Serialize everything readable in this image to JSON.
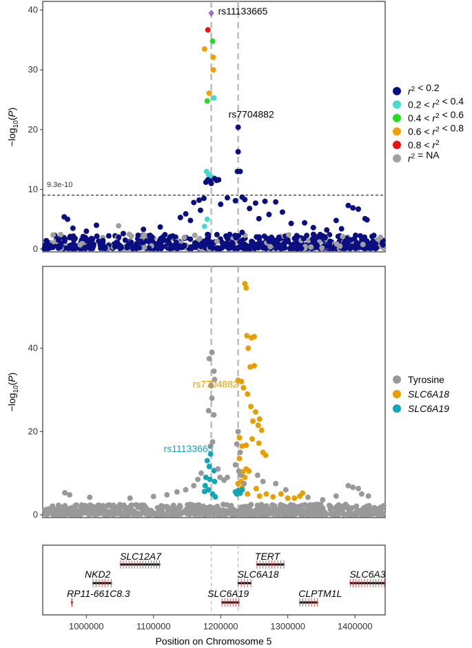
{
  "chart_data": [
    {
      "type": "scatter",
      "panel": "locuszoom",
      "ylabel": "-log10(P)",
      "ylim": [
        0,
        41
      ],
      "yticks": [
        0,
        10,
        20,
        30,
        40
      ],
      "xlim": [
        935000,
        1445000
      ],
      "threshold": {
        "value": 9.03,
        "label": "9.3e-10"
      },
      "vlines": [
        1186000,
        1226000
      ],
      "legend": [
        {
          "label": "r² < 0.2",
          "color": "#0a0f80"
        },
        {
          "label": "0.2 < r² < 0.4",
          "color": "#46d9d0"
        },
        {
          "label": "0.4 < r² < 0.6",
          "color": "#22dd22"
        },
        {
          "label": "0.6 < r² < 0.8",
          "color": "#f0a000"
        },
        {
          "label": "0.8 < r²",
          "color": "#ee1111"
        },
        {
          "label": "r² = NA",
          "color": "#a0a0a0"
        }
      ],
      "annotations": [
        {
          "text": "rs11133665",
          "x": 1186000,
          "y": 39.5
        },
        {
          "text": "rs7704882",
          "x": 1226000,
          "y": 20.4
        }
      ],
      "points": [
        {
          "x": 1186000,
          "y": 39.5,
          "c": "lead"
        },
        {
          "x": 1181000,
          "y": 36.7,
          "c": "r5"
        },
        {
          "x": 1188000,
          "y": 34.8,
          "c": "r3"
        },
        {
          "x": 1176000,
          "y": 33.5,
          "c": "r4"
        },
        {
          "x": 1189000,
          "y": 32.1,
          "c": "r4"
        },
        {
          "x": 1189000,
          "y": 30.0,
          "c": "r4"
        },
        {
          "x": 1183000,
          "y": 26.1,
          "c": "r4"
        },
        {
          "x": 1190000,
          "y": 25.3,
          "c": "r2"
        },
        {
          "x": 1180000,
          "y": 24.8,
          "c": "r3"
        },
        {
          "x": 1226000,
          "y": 20.4,
          "c": "r1"
        },
        {
          "x": 1226000,
          "y": 16.3,
          "c": "r1"
        },
        {
          "x": 1225000,
          "y": 13.0,
          "c": "r1"
        },
        {
          "x": 1229000,
          "y": 13.0,
          "c": "r1"
        },
        {
          "x": 1179000,
          "y": 13.0,
          "c": "r2"
        },
        {
          "x": 1182000,
          "y": 12.5,
          "c": "r2"
        },
        {
          "x": 1185000,
          "y": 12.2,
          "c": "r2"
        },
        {
          "x": 1188000,
          "y": 12.0,
          "c": "r2"
        },
        {
          "x": 1181000,
          "y": 11.6,
          "c": "r1"
        },
        {
          "x": 1184000,
          "y": 11.4,
          "c": "r1"
        },
        {
          "x": 1191000,
          "y": 11.8,
          "c": "r1"
        },
        {
          "x": 1194000,
          "y": 11.5,
          "c": "r1"
        },
        {
          "x": 1197000,
          "y": 11.6,
          "c": "r1"
        },
        {
          "x": 1178000,
          "y": 11.2,
          "c": "r1"
        },
        {
          "x": 1186000,
          "y": 11.0,
          "c": "r1"
        },
        {
          "x": 1176000,
          "y": 3.8,
          "c": "r2"
        },
        {
          "x": 1180000,
          "y": 5.0,
          "c": "r2"
        },
        {
          "x": 1175000,
          "y": 8.5,
          "c": "r1"
        },
        {
          "x": 1210000,
          "y": 8.6,
          "c": "r1"
        },
        {
          "x": 1232000,
          "y": 8.7,
          "c": "r1"
        },
        {
          "x": 1236000,
          "y": 8.3,
          "c": "r1"
        },
        {
          "x": 1222000,
          "y": 8.1,
          "c": "r1"
        },
        {
          "x": 1168000,
          "y": 8.2,
          "c": "r1"
        },
        {
          "x": 1160000,
          "y": 7.8,
          "c": "r1"
        },
        {
          "x": 1200000,
          "y": 7.5,
          "c": "r1"
        },
        {
          "x": 1170000,
          "y": 6.5,
          "c": "r1"
        },
        {
          "x": 1243000,
          "y": 6.8,
          "c": "r1"
        },
        {
          "x": 1252000,
          "y": 7.7,
          "c": "r1"
        },
        {
          "x": 1266000,
          "y": 8.0,
          "c": "r1"
        },
        {
          "x": 1282000,
          "y": 7.9,
          "c": "r1"
        },
        {
          "x": 1148000,
          "y": 5.9,
          "c": "r1"
        },
        {
          "x": 1140000,
          "y": 5.3,
          "c": "r1"
        },
        {
          "x": 1155000,
          "y": 4.8,
          "c": "r1"
        },
        {
          "x": 1257000,
          "y": 5.1,
          "c": "r1"
        },
        {
          "x": 1272000,
          "y": 5.8,
          "c": "r1"
        },
        {
          "x": 1292000,
          "y": 6.2,
          "c": "r1"
        },
        {
          "x": 1305000,
          "y": 4.3,
          "c": "r1"
        },
        {
          "x": 1325000,
          "y": 4.4,
          "c": "r1"
        },
        {
          "x": 1338000,
          "y": 3.6,
          "c": "r1"
        },
        {
          "x": 1358000,
          "y": 3.2,
          "c": "r1"
        },
        {
          "x": 1372000,
          "y": 4.8,
          "c": "r1"
        },
        {
          "x": 1380000,
          "y": 3.4,
          "c": "r1"
        },
        {
          "x": 1390000,
          "y": 7.3,
          "c": "r1"
        },
        {
          "x": 1397000,
          "y": 6.9,
          "c": "r1"
        },
        {
          "x": 1405000,
          "y": 6.7,
          "c": "r1"
        },
        {
          "x": 1415000,
          "y": 5.1,
          "c": "r1"
        },
        {
          "x": 1418000,
          "y": 4.9,
          "c": "r1"
        },
        {
          "x": 967000,
          "y": 5.4,
          "c": "r1"
        },
        {
          "x": 972000,
          "y": 5.0,
          "c": "r1"
        },
        {
          "x": 980000,
          "y": 3.5,
          "c": "r1"
        },
        {
          "x": 1000000,
          "y": 3.0,
          "c": "r1"
        },
        {
          "x": 1015000,
          "y": 4.0,
          "c": "r1"
        },
        {
          "x": 1055000,
          "y": 2.6,
          "c": "r1"
        },
        {
          "x": 1085000,
          "y": 3.3,
          "c": "r1"
        },
        {
          "x": 1110000,
          "y": 3.7,
          "c": "r1"
        },
        {
          "x": 1048000,
          "y": 3.9,
          "c": "rna"
        },
        {
          "x": 1208000,
          "y": 2.2,
          "c": "r1"
        },
        {
          "x": 1232000,
          "y": 2.8,
          "c": "r1"
        }
      ]
    },
    {
      "type": "scatter",
      "panel": "trait-association",
      "ylabel": "-log10(P)",
      "ylim": [
        0,
        59
      ],
      "yticks": [
        0,
        20,
        40
      ],
      "xlim": [
        935000,
        1445000
      ],
      "vlines": [
        1186000,
        1226000
      ],
      "legend": [
        {
          "label": "Tyrosine",
          "color": "#999999",
          "italic": false
        },
        {
          "label": "SLC6A18",
          "color": "#e69f00",
          "italic": true
        },
        {
          "label": "SLC6A19",
          "color": "#11a6b4",
          "italic": true
        }
      ],
      "annotations": [
        {
          "text": "rs7704882",
          "x": 1226000,
          "y": 31.4,
          "color": "#e69f00"
        },
        {
          "text": "rs11133665",
          "x": 1186000,
          "y": 14.6,
          "color": "#11a6b4"
        }
      ],
      "points": [
        {
          "x": 1236000,
          "y": 55.5,
          "c": "o"
        },
        {
          "x": 1238000,
          "y": 54.5,
          "c": "o"
        },
        {
          "x": 1239000,
          "y": 43.0,
          "c": "o"
        },
        {
          "x": 1246000,
          "y": 42.5,
          "c": "o"
        },
        {
          "x": 1250000,
          "y": 42.8,
          "c": "o"
        },
        {
          "x": 1241000,
          "y": 40.0,
          "c": "o"
        },
        {
          "x": 1244000,
          "y": 35.5,
          "c": "o"
        },
        {
          "x": 1250000,
          "y": 35.8,
          "c": "o"
        },
        {
          "x": 1231000,
          "y": 32.0,
          "c": "o"
        },
        {
          "x": 1234000,
          "y": 30.5,
          "c": "o"
        },
        {
          "x": 1226000,
          "y": 32.3,
          "c": "o"
        },
        {
          "x": 1240000,
          "y": 29.0,
          "c": "o"
        },
        {
          "x": 1245000,
          "y": 26.0,
          "c": "o"
        },
        {
          "x": 1252000,
          "y": 24.7,
          "c": "o"
        },
        {
          "x": 1258000,
          "y": 23.0,
          "c": "o"
        },
        {
          "x": 1248000,
          "y": 22.5,
          "c": "o"
        },
        {
          "x": 1256000,
          "y": 21.5,
          "c": "o"
        },
        {
          "x": 1261000,
          "y": 20.3,
          "c": "o"
        },
        {
          "x": 1228000,
          "y": 18.5,
          "c": "o"
        },
        {
          "x": 1232000,
          "y": 16.5,
          "c": "o"
        },
        {
          "x": 1238000,
          "y": 16.7,
          "c": "o"
        },
        {
          "x": 1247000,
          "y": 18.2,
          "c": "o"
        },
        {
          "x": 1257000,
          "y": 17.2,
          "c": "o"
        },
        {
          "x": 1263000,
          "y": 15.0,
          "c": "o"
        },
        {
          "x": 1267000,
          "y": 14.3,
          "c": "o"
        },
        {
          "x": 1228000,
          "y": 13.5,
          "c": "o"
        },
        {
          "x": 1238000,
          "y": 11.0,
          "c": "o"
        },
        {
          "x": 1242000,
          "y": 10.5,
          "c": "o"
        },
        {
          "x": 1233000,
          "y": 10.3,
          "c": "o"
        },
        {
          "x": 1236000,
          "y": 9.0,
          "c": "o"
        },
        {
          "x": 1230000,
          "y": 8.0,
          "c": "o"
        },
        {
          "x": 1226000,
          "y": 7.5,
          "c": "o"
        },
        {
          "x": 1232000,
          "y": 6.5,
          "c": "o"
        },
        {
          "x": 1240000,
          "y": 5.0,
          "c": "o"
        },
        {
          "x": 1253000,
          "y": 6.3,
          "c": "o"
        },
        {
          "x": 1258000,
          "y": 4.5,
          "c": "o"
        },
        {
          "x": 1268000,
          "y": 5.0,
          "c": "o"
        },
        {
          "x": 1278000,
          "y": 4.3,
          "c": "o"
        },
        {
          "x": 1290000,
          "y": 5.0,
          "c": "o"
        },
        {
          "x": 1300000,
          "y": 4.0,
          "c": "o"
        },
        {
          "x": 1310000,
          "y": 4.0,
          "c": "o"
        },
        {
          "x": 1318000,
          "y": 4.5,
          "c": "o"
        },
        {
          "x": 1322000,
          "y": 5.2,
          "c": "o"
        },
        {
          "x": 1185000,
          "y": 14.6,
          "c": "t"
        },
        {
          "x": 1180000,
          "y": 13.0,
          "c": "t"
        },
        {
          "x": 1183000,
          "y": 11.6,
          "c": "t"
        },
        {
          "x": 1190000,
          "y": 10.6,
          "c": "t"
        },
        {
          "x": 1178000,
          "y": 9.0,
          "c": "t"
        },
        {
          "x": 1184000,
          "y": 8.5,
          "c": "t"
        },
        {
          "x": 1191000,
          "y": 8.0,
          "c": "t"
        },
        {
          "x": 1177000,
          "y": 7.0,
          "c": "t"
        },
        {
          "x": 1182000,
          "y": 6.0,
          "c": "t"
        },
        {
          "x": 1188000,
          "y": 5.0,
          "c": "t"
        },
        {
          "x": 1176000,
          "y": 5.6,
          "c": "t"
        },
        {
          "x": 1192000,
          "y": 4.3,
          "c": "t"
        },
        {
          "x": 1222000,
          "y": 5.5,
          "c": "t"
        },
        {
          "x": 1226000,
          "y": 5.8,
          "c": "t"
        },
        {
          "x": 1229000,
          "y": 5.2,
          "c": "t"
        },
        {
          "x": 1232000,
          "y": 6.0,
          "c": "t"
        },
        {
          "x": 1224000,
          "y": 5.0,
          "c": "t"
        },
        {
          "x": 1187000,
          "y": 39.0,
          "c": "g"
        },
        {
          "x": 1183000,
          "y": 37.5,
          "c": "g"
        },
        {
          "x": 1190000,
          "y": 34.5,
          "c": "g"
        },
        {
          "x": 1191000,
          "y": 32.5,
          "c": "g"
        },
        {
          "x": 1186000,
          "y": 31.0,
          "c": "g"
        },
        {
          "x": 1187000,
          "y": 28.0,
          "c": "g"
        },
        {
          "x": 1182000,
          "y": 25.0,
          "c": "g"
        },
        {
          "x": 1190000,
          "y": 24.0,
          "c": "g"
        },
        {
          "x": 1185000,
          "y": 16.5,
          "c": "g"
        },
        {
          "x": 1188000,
          "y": 17.5,
          "c": "g"
        },
        {
          "x": 1226000,
          "y": 20.0,
          "c": "g"
        },
        {
          "x": 1224000,
          "y": 17.0,
          "c": "g"
        },
        {
          "x": 1229000,
          "y": 15.0,
          "c": "g"
        },
        {
          "x": 1222000,
          "y": 12.0,
          "c": "g"
        },
        {
          "x": 1227000,
          "y": 10.5,
          "c": "g"
        },
        {
          "x": 1230000,
          "y": 9.5,
          "c": "g"
        },
        {
          "x": 1235000,
          "y": 7.5,
          "c": "g"
        },
        {
          "x": 1196000,
          "y": 11.0,
          "c": "g"
        },
        {
          "x": 1199000,
          "y": 9.0,
          "c": "g"
        },
        {
          "x": 1205000,
          "y": 8.3,
          "c": "g"
        },
        {
          "x": 1171000,
          "y": 10.0,
          "c": "g"
        },
        {
          "x": 1166000,
          "y": 8.5,
          "c": "g"
        },
        {
          "x": 1160000,
          "y": 7.0,
          "c": "g"
        },
        {
          "x": 1210000,
          "y": 9.0,
          "c": "g"
        },
        {
          "x": 1255000,
          "y": 9.5,
          "c": "g"
        },
        {
          "x": 1263000,
          "y": 8.0,
          "c": "g"
        },
        {
          "x": 1148000,
          "y": 6.0,
          "c": "g"
        },
        {
          "x": 1135000,
          "y": 5.5,
          "c": "g"
        },
        {
          "x": 1282000,
          "y": 7.5,
          "c": "g"
        },
        {
          "x": 1297000,
          "y": 6.0,
          "c": "g"
        },
        {
          "x": 968000,
          "y": 5.3,
          "c": "g"
        },
        {
          "x": 975000,
          "y": 4.8,
          "c": "g"
        },
        {
          "x": 1005000,
          "y": 4.2,
          "c": "g"
        },
        {
          "x": 1065000,
          "y": 4.0,
          "c": "g"
        },
        {
          "x": 1100000,
          "y": 4.4,
          "c": "g"
        },
        {
          "x": 1120000,
          "y": 4.8,
          "c": "g"
        },
        {
          "x": 1330000,
          "y": 4.2,
          "c": "g"
        },
        {
          "x": 1352000,
          "y": 3.6,
          "c": "g"
        },
        {
          "x": 1372000,
          "y": 4.5,
          "c": "g"
        },
        {
          "x": 1390000,
          "y": 7.0,
          "c": "g"
        },
        {
          "x": 1397000,
          "y": 6.6,
          "c": "g"
        },
        {
          "x": 1405000,
          "y": 6.3,
          "c": "g"
        },
        {
          "x": 1410000,
          "y": 5.0,
          "c": "g"
        },
        {
          "x": 1420000,
          "y": 4.5,
          "c": "g"
        }
      ]
    },
    {
      "type": "gene-track",
      "xlabel": "Position on Chromosome 5",
      "xticks": [
        1000000,
        1100000,
        1200000,
        1300000,
        1400000
      ],
      "xtick_labels": [
        "1000000",
        "1100000",
        "1200000",
        "1300000",
        "1400000"
      ],
      "xlim": [
        935000,
        1445000
      ],
      "vlines": [
        1186000,
        1226000
      ],
      "genes": [
        {
          "name": "SLC12A7",
          "start": 1050000,
          "end": 1110000,
          "row": 0
        },
        {
          "name": "TERT",
          "start": 1253000,
          "end": 1295000,
          "row": 0
        },
        {
          "name": "NKD2",
          "start": 1009000,
          "end": 1038000,
          "row": 1
        },
        {
          "name": "SLC6A18",
          "start": 1225000,
          "end": 1246000,
          "row": 1
        },
        {
          "name": "SLC6A19",
          "start": 1201000,
          "end": 1228000,
          "row": 2
        },
        {
          "name": "CLPTM1L",
          "start": 1317000,
          "end": 1345000,
          "row": 2
        },
        {
          "name": "RP11-661C8.3",
          "start": 977000,
          "end": 980000,
          "row": 2
        },
        {
          "name": "SLC6A3",
          "start": 1392000,
          "end": 1445000,
          "row": 1
        }
      ]
    }
  ]
}
